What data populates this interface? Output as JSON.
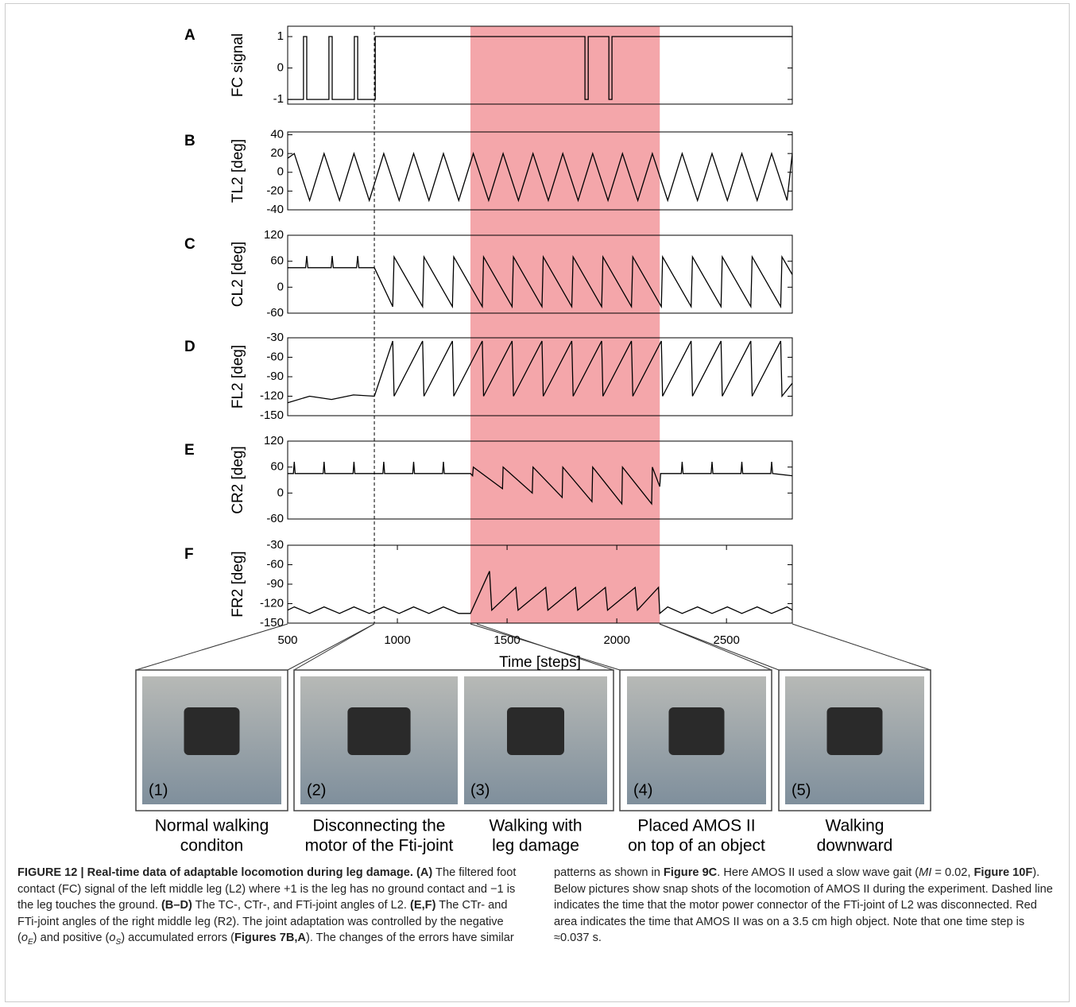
{
  "chart_data": [
    {
      "type": "line",
      "label": "A",
      "ylabel": "FC signal",
      "xlim": [
        500,
        2800
      ],
      "ylim": [
        -1.15,
        1.33
      ],
      "yticks": [
        1,
        0,
        -1
      ],
      "series": [
        {
          "color": "#000000",
          "x": [
            500,
            572,
            572,
            587,
            587,
            688,
            688,
            703,
            703,
            804,
            804,
            819,
            819,
            899,
            899,
            1855,
            1855,
            1870,
            1870,
            1964,
            1964,
            1978,
            1978,
            2800
          ],
          "values": [
            -1,
            -1,
            1,
            1,
            -1,
            -1,
            1,
            1,
            -1,
            -1,
            1,
            1,
            -1,
            -1,
            1,
            1,
            -1,
            -1,
            1,
            1,
            -1,
            -1,
            1,
            1
          ]
        }
      ]
    },
    {
      "type": "line",
      "label": "B",
      "ylabel": "TL2 [deg]",
      "xlim": [
        500,
        2800
      ],
      "ylim": [
        -40,
        43
      ],
      "yticks": [
        40,
        20,
        0,
        -20,
        -40
      ],
      "series": [
        {
          "color": "#000000",
          "x": [
            500,
            530,
            600,
            666,
            736,
            802,
            872,
            938,
            1008,
            1074,
            1144,
            1210,
            1280,
            1346,
            1416,
            1482,
            1552,
            1618,
            1688,
            1754,
            1824,
            1890,
            1960,
            2026,
            2096,
            2162,
            2232,
            2298,
            2368,
            2434,
            2504,
            2570,
            2640,
            2706,
            2776,
            2800
          ],
          "values": [
            15,
            20,
            -30,
            20,
            -30,
            20,
            -30,
            20,
            -30,
            20,
            -30,
            20,
            -30,
            20,
            -30,
            20,
            -30,
            20,
            -30,
            20,
            -30,
            20,
            -30,
            20,
            -30,
            20,
            -30,
            20,
            -30,
            20,
            -30,
            20,
            -30,
            20,
            -30,
            20
          ]
        }
      ]
    },
    {
      "type": "line",
      "label": "C",
      "ylabel": "CL2 [deg]",
      "xlim": [
        500,
        2800
      ],
      "ylim": [
        -60,
        120
      ],
      "yticks": [
        120,
        60,
        0,
        -60
      ],
      "series": [
        {
          "color": "#000000",
          "x": [
            500,
            582,
            587,
            592,
            698,
            703,
            708,
            814,
            819,
            824,
            895,
            979,
            985,
            1115,
            1121,
            1251,
            1257,
            1387,
            1393,
            1523,
            1529,
            1659,
            1665,
            1795,
            1801,
            1931,
            1937,
            2067,
            2073,
            2203,
            2209,
            2339,
            2345,
            2475,
            2481,
            2611,
            2617,
            2747,
            2753,
            2800
          ],
          "values": [
            45,
            45,
            72,
            45,
            45,
            72,
            45,
            45,
            72,
            45,
            45,
            -45,
            70,
            -45,
            70,
            -45,
            70,
            -45,
            70,
            -45,
            70,
            -45,
            70,
            -45,
            70,
            -45,
            70,
            -45,
            70,
            -45,
            70,
            -45,
            70,
            -45,
            70,
            -45,
            70,
            -45,
            70,
            29
          ]
        }
      ]
    },
    {
      "type": "line",
      "label": "D",
      "ylabel": "FL2 [deg]",
      "xlim": [
        500,
        2800
      ],
      "ylim": [
        -150,
        -30
      ],
      "yticks": [
        -30,
        -60,
        -90,
        -120,
        -150
      ],
      "series": [
        {
          "color": "#000000",
          "x": [
            500,
            600,
            700,
            800,
            895,
            979,
            985,
            1115,
            1121,
            1251,
            1257,
            1387,
            1393,
            1523,
            1529,
            1659,
            1665,
            1795,
            1801,
            1931,
            1937,
            2067,
            2073,
            2203,
            2209,
            2339,
            2345,
            2475,
            2481,
            2611,
            2617,
            2747,
            2753,
            2800
          ],
          "values": [
            -130,
            -120,
            -125,
            -118,
            -120,
            -35,
            -120,
            -35,
            -120,
            -35,
            -120,
            -35,
            -120,
            -35,
            -120,
            -35,
            -120,
            -35,
            -120,
            -35,
            -120,
            -35,
            -120,
            -35,
            -120,
            -35,
            -120,
            -35,
            -120,
            -35,
            -120,
            -35,
            -120,
            -100
          ]
        }
      ]
    },
    {
      "type": "line",
      "label": "E",
      "ylabel": "CR2 [deg]",
      "xlim": [
        500,
        2800
      ],
      "ylim": [
        -60,
        120
      ],
      "yticks": [
        120,
        60,
        0,
        -60
      ],
      "series": [
        {
          "color": "#000000",
          "x": [
            500,
            526,
            530,
            534,
            662,
            666,
            670,
            798,
            802,
            806,
            934,
            938,
            942,
            1070,
            1074,
            1078,
            1206,
            1210,
            1214,
            1333,
            1343,
            1346,
            1479,
            1482,
            1615,
            1618,
            1751,
            1754,
            1887,
            1890,
            2023,
            2026,
            2159,
            2162,
            2196,
            2200,
            2294,
            2298,
            2302,
            2430,
            2434,
            2438,
            2566,
            2570,
            2574,
            2702,
            2706,
            2710,
            2800
          ],
          "values": [
            45,
            45,
            72,
            45,
            45,
            72,
            45,
            45,
            72,
            45,
            45,
            72,
            45,
            45,
            72,
            45,
            45,
            72,
            45,
            45,
            40,
            60,
            10,
            60,
            0,
            60,
            -10,
            60,
            -20,
            60,
            -25,
            60,
            -25,
            60,
            15,
            45,
            45,
            72,
            45,
            45,
            72,
            45,
            45,
            72,
            45,
            45,
            72,
            45,
            40
          ]
        }
      ]
    },
    {
      "type": "line",
      "label": "F",
      "ylabel": "FR2 [deg]",
      "xlabel": "Time [steps]",
      "xlim": [
        500,
        2800
      ],
      "ylim": [
        -150,
        -30
      ],
      "yticks": [
        -30,
        -60,
        -90,
        -120,
        -150
      ],
      "xticks": [
        500,
        1000,
        1500,
        2000,
        2500
      ],
      "series": [
        {
          "color": "#000000",
          "x": [
            500,
            530,
            600,
            666,
            736,
            802,
            872,
            938,
            1008,
            1074,
            1144,
            1210,
            1280,
            1333,
            1420,
            1430,
            1540,
            1550,
            1676,
            1686,
            1812,
            1822,
            1948,
            1958,
            2084,
            2094,
            2190,
            2196,
            2232,
            2298,
            2368,
            2434,
            2504,
            2570,
            2640,
            2706,
            2776,
            2800
          ],
          "values": [
            -130,
            -125,
            -135,
            -125,
            -135,
            -125,
            -135,
            -125,
            -135,
            -125,
            -135,
            -125,
            -135,
            -135,
            -70,
            -130,
            -95,
            -130,
            -95,
            -130,
            -95,
            -130,
            -95,
            -130,
            -95,
            -130,
            -95,
            -135,
            -125,
            -135,
            -125,
            -135,
            -125,
            -135,
            -125,
            -135,
            -125,
            -130
          ]
        }
      ]
    }
  ],
  "shaded_region": {
    "x": [
      1333,
      2196
    ],
    "color": "#f4a6aa"
  },
  "dashed_line_x": 895,
  "photos": [
    {
      "label": "(1)",
      "caption": [
        "Normal walking",
        "conditon"
      ]
    },
    {
      "label": "(2)",
      "caption": [
        "Disconnecting the",
        "motor of the Fti-joint"
      ]
    },
    {
      "label": "(3)",
      "caption": [
        "Walking with",
        "leg damage"
      ]
    },
    {
      "label": "(4)",
      "caption": [
        "Placed AMOS II",
        "on top of an object"
      ]
    },
    {
      "label": "(5)",
      "caption": [
        "Walking",
        "downward"
      ]
    }
  ],
  "caption": {
    "segments": [
      {
        "style": "b",
        "text": "FIGURE 12 | Real-time data of adaptable locomotion during leg damage."
      },
      {
        "style": "b",
        "text": " (A)"
      },
      {
        "style": "normal",
        "text": " The filtered foot contact (FC) signal of the left middle leg (L2) where +1 is the leg has no ground contact and −1 is the leg touches the ground. "
      },
      {
        "style": "b",
        "text": "(B–D)"
      },
      {
        "style": "normal",
        "text": " The TC-, CTr-, and FTi-joint angles of L2. "
      },
      {
        "style": "b",
        "text": "(E,F)"
      },
      {
        "style": "normal",
        "text": " The CTr- and FTi-joint angles of the right middle leg (R2). The joint adaptation was controlled by the negative ("
      },
      {
        "style": "i",
        "text": "o"
      },
      {
        "style": "sub",
        "text": "E"
      },
      {
        "style": "normal",
        "text": ") and positive ("
      },
      {
        "style": "i",
        "text": "o"
      },
      {
        "style": "sub",
        "text": "S"
      },
      {
        "style": "normal",
        "text": ") accumulated errors ("
      },
      {
        "style": "b",
        "text": "Figures 7B,A"
      },
      {
        "style": "normal",
        "text": "). The changes of the errors have similar patterns as shown in "
      },
      {
        "style": "b",
        "text": "Figure 9C"
      },
      {
        "style": "normal",
        "text": ". Here AMOS II used a slow wave gait ("
      },
      {
        "style": "i",
        "text": "MI"
      },
      {
        "style": "normal",
        "text": " = 0.02, "
      },
      {
        "style": "b",
        "text": "Figure 10F"
      },
      {
        "style": "normal",
        "text": "). Below pictures show snap shots of the locomotion of AMOS II during the experiment. Dashed line indicates the time that the motor power connector of the FTi-joint of L2 was disconnected. Red area indicates the time that AMOS II was on a 3.5 cm high object. Note that one time step is ≈0.037 s."
      }
    ]
  }
}
